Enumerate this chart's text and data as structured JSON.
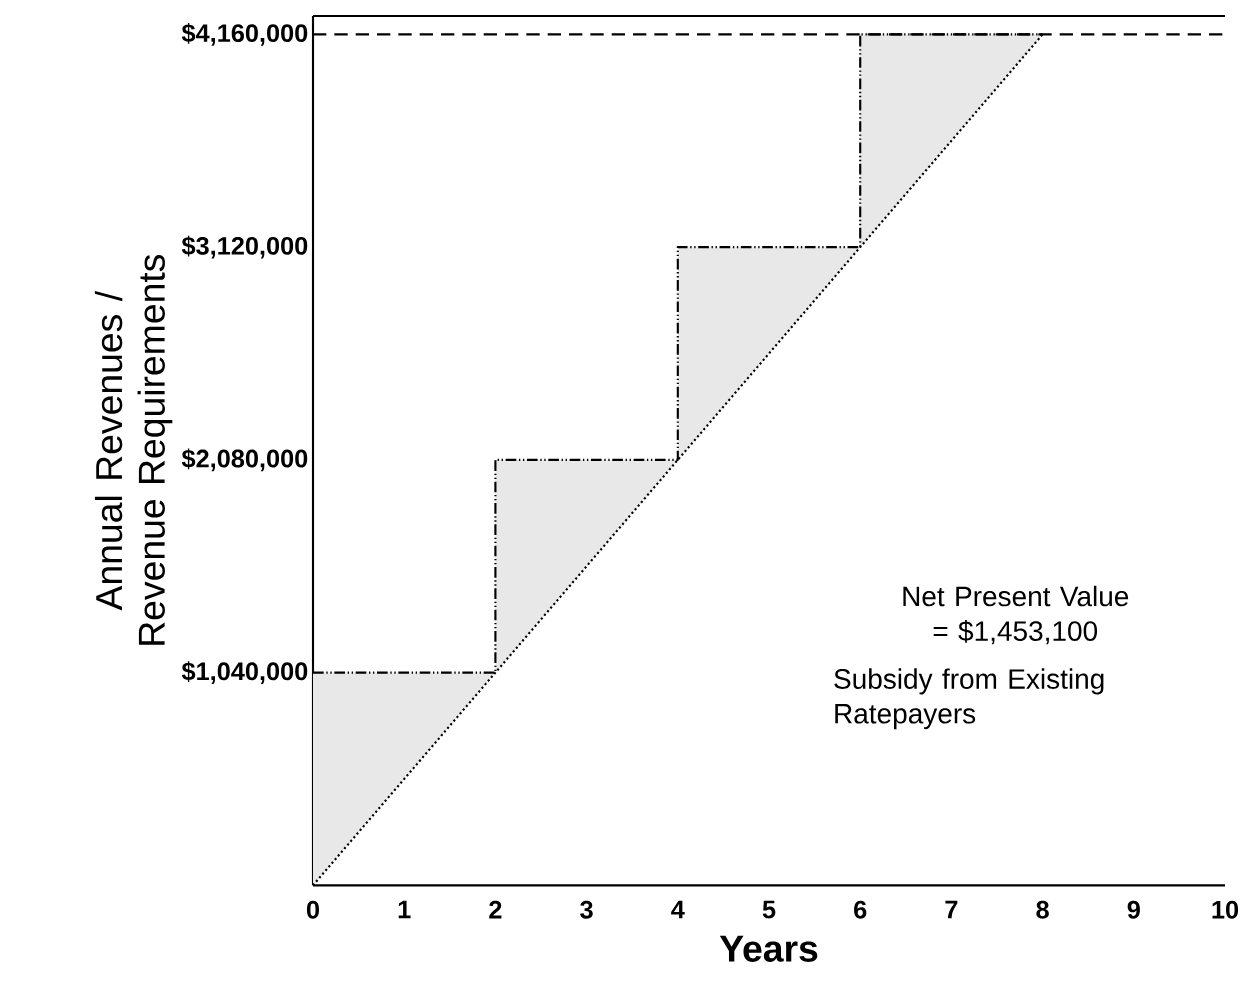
{
  "chart_data": {
    "type": "line",
    "xlabel": "Years",
    "ylabel": "Annual Revenues / Revenue Requirements",
    "xlim": [
      0,
      10
    ],
    "ylim": [
      0,
      4250000
    ],
    "xticks": [
      0,
      1,
      2,
      3,
      4,
      5,
      6,
      7,
      8,
      9,
      10
    ],
    "yticks": [
      {
        "value": 1040000,
        "label": "$1,040,000"
      },
      {
        "value": 2080000,
        "label": "$2,080,000"
      },
      {
        "value": 3120000,
        "label": "$3,120,000"
      },
      {
        "value": 4160000,
        "label": "$4,160,000"
      }
    ],
    "grid": false,
    "series": [
      {
        "type": "step",
        "color": "#000000",
        "line_style": "dashdot",
        "x": [
          0,
          2,
          4,
          6,
          8
        ],
        "values": [
          1040000,
          2080000,
          3120000,
          4160000,
          4160000
        ],
        "upper": [
          1040000,
          2080000,
          3120000,
          4160000,
          4160000
        ],
        "lower": [
          0,
          1040000,
          2080000,
          3120000,
          4160000
        ]
      },
      {
        "color": "#000000",
        "line_style": "dotted",
        "x": [
          0,
          8
        ],
        "values": [
          0,
          4160000
        ]
      }
    ],
    "ref_lines": [
      {
        "axis": "y",
        "value": 4160000,
        "line_style": "dashed",
        "color": "#000000"
      }
    ],
    "annotations": [
      "Net Present Value = $1,453,100",
      "Subsidy from Existing Ratepayers"
    ]
  }
}
